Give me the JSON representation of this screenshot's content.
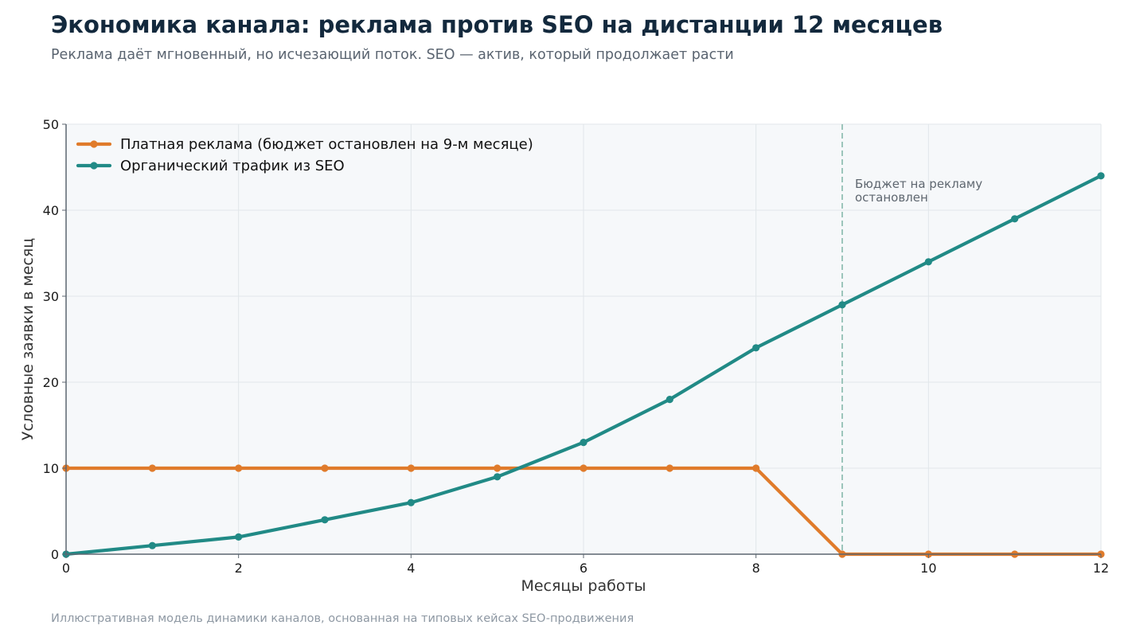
{
  "header": {
    "title": "Экономика канала: реклама против SEO на дистанции 12 месяцев",
    "subtitle": "Реклама даёт мгновенный, но исчезающий поток. SEO — актив, который продолжает расти"
  },
  "footer": {
    "note": "Иллюстративная модель динамики каналов, основанная на типовых кейсах SEO-продвижения"
  },
  "chart_data": {
    "type": "line",
    "xlabel": "Месяцы работы",
    "ylabel": "Условные заявки в месяц",
    "xlim": [
      0,
      12
    ],
    "ylim": [
      0,
      50
    ],
    "xticks": [
      0,
      2,
      4,
      6,
      8,
      10,
      12
    ],
    "yticks": [
      0,
      10,
      20,
      30,
      40,
      50
    ],
    "grid": true,
    "legend_position": "top-left",
    "x": [
      0,
      1,
      2,
      3,
      4,
      5,
      6,
      7,
      8,
      9,
      10,
      11,
      12
    ],
    "series": [
      {
        "name": "Платная реклама (бюджет остановлен на 9-м месяце)",
        "color": "#e07b2b",
        "values": [
          10,
          10,
          10,
          10,
          10,
          10,
          10,
          10,
          10,
          0,
          0,
          0,
          0
        ]
      },
      {
        "name": "Органический трафик из SEO",
        "color": "#218a86",
        "values": [
          0,
          1,
          2,
          4,
          6,
          9,
          13,
          18,
          24,
          29,
          34,
          39,
          44
        ]
      }
    ],
    "annotations": [
      {
        "x": 9,
        "y": 42,
        "lines": [
          "Бюджет на рекламу",
          "остановлен"
        ],
        "line_style": "dashed",
        "color": "#9cc5bb"
      }
    ],
    "colors": {
      "plot_background": "#f6f8fa",
      "grid": "#e1e6ea",
      "axis": "#5c6670"
    }
  }
}
